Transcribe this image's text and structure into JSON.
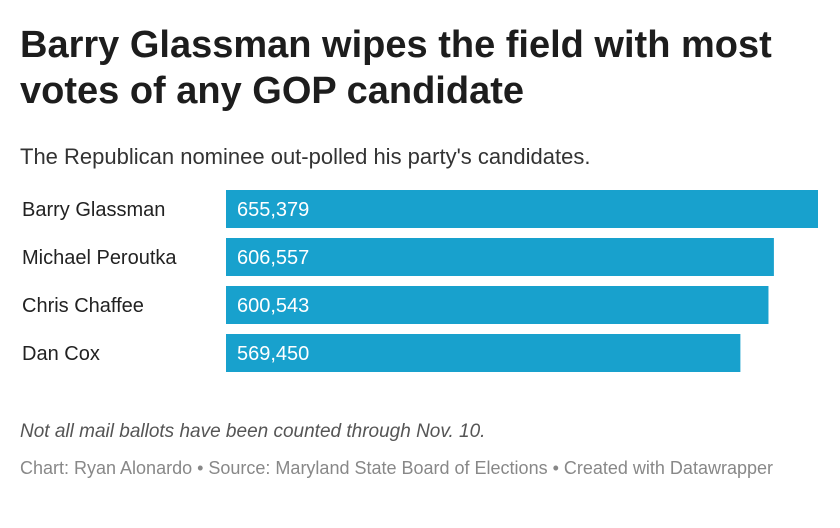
{
  "header": {
    "title": "Barry Glassman wipes the field with most votes of any GOP candidate",
    "subtitle": "The Republican nominee out-polled his party's candidates."
  },
  "chart_data": {
    "type": "bar",
    "orientation": "horizontal",
    "categories": [
      "Barry Glassman",
      "Michael Peroutka",
      "Chris Chaffee",
      "Dan Cox"
    ],
    "values": [
      655379,
      606557,
      600543,
      569450
    ],
    "value_labels": [
      "655,379",
      "606,557",
      "600,543",
      "569,450"
    ],
    "xlim": [
      0,
      655379
    ],
    "grid": false,
    "bar_color": "#18a1cd",
    "label_color": "#ffffff"
  },
  "footer": {
    "note": "Not all mail ballots have been counted through Nov. 10.",
    "credit": "Chart: Ryan Alonardo • Source: Maryland State Board of Elections • Created with Datawrapper"
  }
}
